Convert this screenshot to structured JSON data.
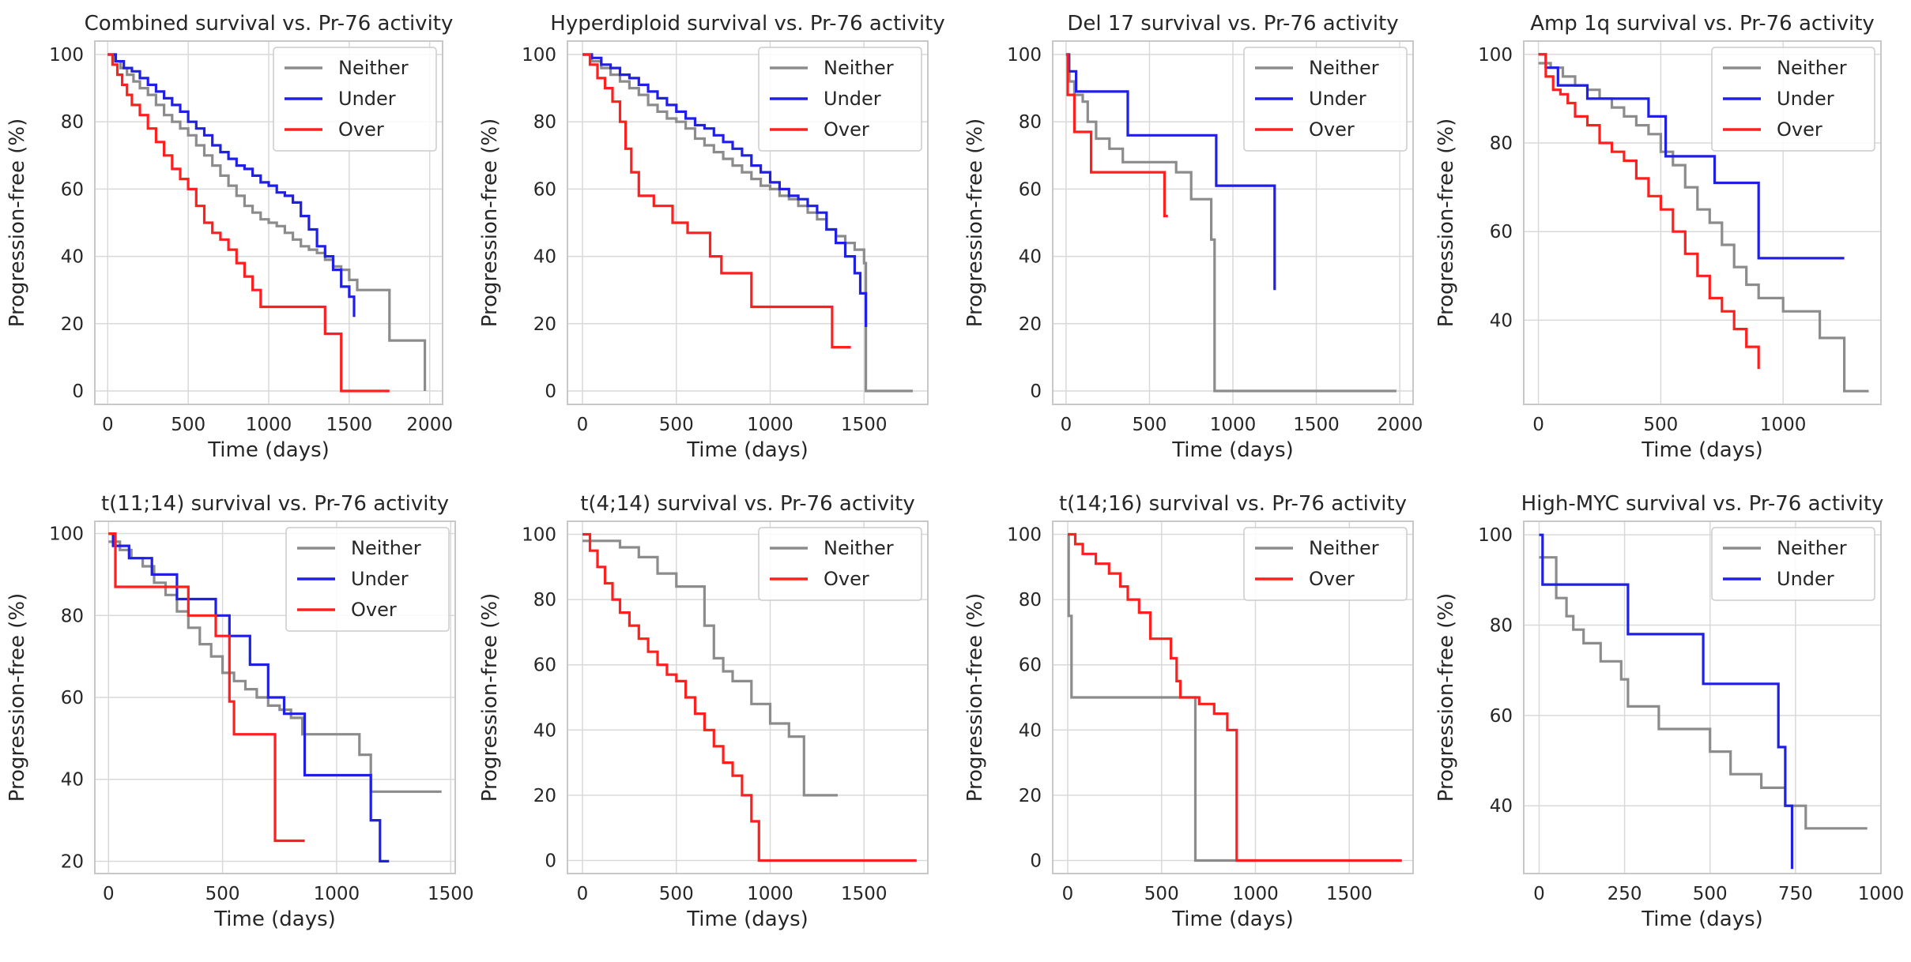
{
  "colors": {
    "Neither": "#8c8c8c",
    "Under": "#1f1fe6",
    "Over": "#ff1f1f"
  },
  "chart_data": [
    {
      "type": "line",
      "title": "Combined survival vs. Pr-76 activity",
      "xlabel": "Time (days)",
      "ylabel": "Progression-free (%)",
      "xlim": [
        -80,
        2080
      ],
      "ylim": [
        -4,
        104
      ],
      "xticks": [
        0,
        500,
        1000,
        1500,
        2000
      ],
      "yticks": [
        0,
        20,
        40,
        60,
        80,
        100
      ],
      "legend": [
        "Neither",
        "Under",
        "Over"
      ],
      "series": [
        {
          "name": "Neither",
          "x": [
            0,
            40,
            80,
            120,
            160,
            200,
            250,
            300,
            350,
            400,
            450,
            500,
            550,
            600,
            650,
            700,
            750,
            800,
            850,
            900,
            950,
            1000,
            1050,
            1100,
            1150,
            1200,
            1250,
            1300,
            1350,
            1400,
            1450,
            1500,
            1550,
            1750,
            1970
          ],
          "y": [
            100,
            98,
            96,
            94,
            92,
            90,
            88,
            85,
            82,
            80,
            78,
            76,
            73,
            70,
            67,
            64,
            61,
            58,
            55,
            53,
            51,
            50,
            49,
            47,
            45,
            43,
            42,
            41,
            39,
            37,
            36,
            33,
            30,
            15,
            0
          ]
        },
        {
          "name": "Under",
          "x": [
            0,
            50,
            100,
            150,
            200,
            250,
            300,
            350,
            400,
            450,
            500,
            550,
            600,
            650,
            700,
            750,
            800,
            850,
            900,
            950,
            1000,
            1050,
            1100,
            1150,
            1200,
            1250,
            1300,
            1350,
            1400,
            1450,
            1500,
            1530
          ],
          "y": [
            100,
            98,
            96,
            95,
            93,
            91,
            89,
            87,
            85,
            83,
            80,
            78,
            76,
            73,
            71,
            69,
            67,
            66,
            64,
            62,
            61,
            59,
            58,
            56,
            52,
            48,
            43,
            40,
            36,
            31,
            28,
            22
          ]
        },
        {
          "name": "Over",
          "x": [
            0,
            30,
            60,
            90,
            120,
            150,
            200,
            250,
            300,
            350,
            400,
            450,
            500,
            550,
            600,
            650,
            700,
            750,
            800,
            850,
            900,
            950,
            1000,
            1050,
            1100,
            1150,
            1200,
            1250,
            1300,
            1350,
            1400,
            1450,
            1750
          ],
          "y": [
            100,
            97,
            94,
            91,
            88,
            85,
            82,
            78,
            74,
            70,
            66,
            63,
            60,
            55,
            50,
            47,
            45,
            42,
            38,
            34,
            30,
            25,
            25,
            25,
            25,
            25,
            25,
            25,
            25,
            17,
            17,
            0,
            0
          ]
        }
      ]
    },
    {
      "type": "line",
      "title": "Hyperdiploid survival vs. Pr-76 activity",
      "xlabel": "Time (days)",
      "ylabel": "Progression-free (%)",
      "xlim": [
        -80,
        1840
      ],
      "ylim": [
        -4,
        104
      ],
      "xticks": [
        0,
        500,
        1000,
        1500
      ],
      "yticks": [
        0,
        20,
        40,
        60,
        80,
        100
      ],
      "legend": [
        "Neither",
        "Under",
        "Over"
      ],
      "series": [
        {
          "name": "Neither",
          "x": [
            0,
            50,
            100,
            150,
            200,
            250,
            300,
            350,
            400,
            450,
            500,
            550,
            600,
            650,
            700,
            750,
            800,
            850,
            900,
            950,
            1000,
            1050,
            1100,
            1150,
            1200,
            1250,
            1300,
            1350,
            1400,
            1450,
            1500,
            1510,
            1760
          ],
          "y": [
            100,
            98,
            96,
            94,
            92,
            90,
            88,
            85,
            83,
            81,
            80,
            78,
            75,
            73,
            71,
            69,
            67,
            65,
            63,
            61,
            60,
            58,
            57,
            55,
            53,
            51,
            48,
            46,
            44,
            42,
            38,
            0,
            0
          ]
        },
        {
          "name": "Under",
          "x": [
            0,
            50,
            100,
            150,
            200,
            250,
            300,
            350,
            400,
            450,
            500,
            550,
            600,
            650,
            700,
            750,
            800,
            850,
            900,
            950,
            1000,
            1050,
            1100,
            1150,
            1200,
            1250,
            1300,
            1350,
            1400,
            1450,
            1480,
            1510
          ],
          "y": [
            100,
            99,
            97,
            96,
            94,
            93,
            91,
            89,
            87,
            85,
            83,
            81,
            79,
            78,
            76,
            74,
            72,
            70,
            67,
            65,
            62,
            60,
            58,
            57,
            55,
            53,
            48,
            44,
            40,
            35,
            29,
            19
          ]
        },
        {
          "name": "Over",
          "x": [
            0,
            40,
            80,
            120,
            160,
            200,
            230,
            260,
            300,
            380,
            480,
            560,
            680,
            740,
            900,
            1100,
            1330,
            1430
          ],
          "y": [
            100,
            97,
            93,
            90,
            86,
            80,
            72,
            65,
            58,
            55,
            50,
            47,
            40,
            35,
            25,
            25,
            13,
            13
          ]
        }
      ]
    },
    {
      "type": "line",
      "title": "Del 17 survival vs. Pr-76 activity",
      "xlabel": "Time (days)",
      "ylabel": "Progression-free (%)",
      "xlim": [
        -80,
        2080
      ],
      "ylim": [
        -4,
        104
      ],
      "xticks": [
        0,
        500,
        1000,
        1500,
        2000
      ],
      "yticks": [
        0,
        20,
        40,
        60,
        80,
        100
      ],
      "legend": [
        "Neither",
        "Under",
        "Over"
      ],
      "series": [
        {
          "name": "Neither",
          "x": [
            0,
            20,
            50,
            100,
            130,
            180,
            260,
            340,
            500,
            660,
            750,
            870,
            890,
            1980
          ],
          "y": [
            100,
            92,
            88,
            86,
            80,
            75,
            72,
            68,
            68,
            65,
            57,
            45,
            0,
            0
          ]
        },
        {
          "name": "Under",
          "x": [
            0,
            15,
            60,
            200,
            370,
            660,
            900,
            1250
          ],
          "y": [
            100,
            95,
            89,
            89,
            76,
            76,
            61,
            30
          ]
        },
        {
          "name": "Over",
          "x": [
            0,
            10,
            50,
            150,
            300,
            450,
            590,
            610
          ],
          "y": [
            100,
            88,
            77,
            65,
            65,
            65,
            52,
            52
          ]
        }
      ]
    },
    {
      "type": "line",
      "title": "Amp 1q survival vs. Pr-76 activity",
      "xlabel": "Time (days)",
      "ylabel": "Progression-free (%)",
      "xlim": [
        -60,
        1400
      ],
      "ylim": [
        21,
        103
      ],
      "xticks": [
        0,
        500,
        1000
      ],
      "yticks": [
        40,
        60,
        80,
        100
      ],
      "legend": [
        "Neither",
        "Under",
        "Over"
      ],
      "series": [
        {
          "name": "Neither",
          "x": [
            0,
            50,
            100,
            150,
            200,
            250,
            300,
            350,
            400,
            450,
            500,
            550,
            600,
            650,
            700,
            750,
            800,
            850,
            900,
            1000,
            1150,
            1250,
            1350
          ],
          "y": [
            98,
            97,
            95,
            93,
            92,
            90,
            88,
            86,
            84,
            82,
            78,
            75,
            70,
            65,
            62,
            57,
            52,
            48,
            45,
            42,
            36,
            24,
            24
          ]
        },
        {
          "name": "Under",
          "x": [
            0,
            30,
            80,
            200,
            320,
            450,
            520,
            720,
            900,
            1250
          ],
          "y": [
            100,
            97,
            93,
            90,
            90,
            86,
            77,
            71,
            54,
            54
          ]
        },
        {
          "name": "Over",
          "x": [
            0,
            30,
            60,
            90,
            120,
            150,
            200,
            250,
            300,
            350,
            400,
            450,
            500,
            550,
            600,
            650,
            700,
            750,
            800,
            850,
            900
          ],
          "y": [
            100,
            95,
            92,
            91,
            89,
            86,
            84,
            80,
            78,
            76,
            72,
            68,
            65,
            60,
            55,
            50,
            45,
            42,
            38,
            34,
            29
          ]
        }
      ]
    },
    {
      "type": "line",
      "title": "t(11;14) survival vs. Pr-76 activity",
      "xlabel": "Time (days)",
      "ylabel": "Progression-free (%)",
      "xlim": [
        -60,
        1520
      ],
      "ylim": [
        17,
        103
      ],
      "xticks": [
        0,
        500,
        1000,
        1500
      ],
      "yticks": [
        20,
        40,
        60,
        80,
        100
      ],
      "legend": [
        "Neither",
        "Under",
        "Over"
      ],
      "series": [
        {
          "name": "Neither",
          "x": [
            0,
            50,
            100,
            150,
            200,
            250,
            300,
            350,
            400,
            450,
            500,
            550,
            600,
            650,
            700,
            750,
            800,
            850,
            900,
            1000,
            1100,
            1150,
            1460
          ],
          "y": [
            98,
            96,
            94,
            92,
            88,
            85,
            81,
            77,
            73,
            70,
            66,
            64,
            62,
            60,
            58,
            57,
            55,
            51,
            51,
            51,
            46,
            37,
            37
          ]
        },
        {
          "name": "Under",
          "x": [
            0,
            20,
            90,
            190,
            300,
            400,
            470,
            530,
            620,
            700,
            770,
            860,
            1150,
            1190,
            1230
          ],
          "y": [
            100,
            97,
            94,
            90,
            84,
            84,
            80,
            75,
            68,
            60,
            56,
            41,
            30,
            20,
            20
          ]
        },
        {
          "name": "Over",
          "x": [
            0,
            30,
            120,
            250,
            350,
            470,
            530,
            550,
            730,
            860
          ],
          "y": [
            100,
            87,
            87,
            87,
            80,
            75,
            59,
            51,
            25,
            25
          ]
        }
      ]
    },
    {
      "type": "line",
      "title": "t(4;14) survival vs. Pr-76 activity",
      "xlabel": "Time (days)",
      "ylabel": "Progression-free (%)",
      "xlim": [
        -80,
        1840
      ],
      "ylim": [
        -4,
        104
      ],
      "xticks": [
        0,
        500,
        1000,
        1500
      ],
      "yticks": [
        0,
        20,
        40,
        60,
        80,
        100
      ],
      "legend": [
        "Neither",
        "Over"
      ],
      "series": [
        {
          "name": "Neither",
          "x": [
            0,
            100,
            200,
            300,
            400,
            500,
            600,
            650,
            700,
            750,
            800,
            900,
            1000,
            1100,
            1180,
            1360
          ],
          "y": [
            98,
            98,
            96,
            93,
            88,
            84,
            84,
            72,
            62,
            58,
            55,
            48,
            42,
            38,
            20,
            20
          ]
        },
        {
          "name": "Over",
          "x": [
            0,
            40,
            80,
            120,
            160,
            200,
            250,
            300,
            350,
            400,
            450,
            500,
            550,
            600,
            650,
            700,
            750,
            800,
            850,
            900,
            940,
            1780
          ],
          "y": [
            100,
            95,
            90,
            85,
            80,
            76,
            72,
            68,
            64,
            60,
            57,
            55,
            50,
            45,
            40,
            35,
            30,
            26,
            20,
            12,
            0,
            0
          ]
        }
      ]
    },
    {
      "type": "line",
      "title": "t(14;16) survival vs. Pr-76 activity",
      "xlabel": "Time (days)",
      "ylabel": "Progression-free (%)",
      "xlim": [
        -80,
        1840
      ],
      "ylim": [
        -4,
        104
      ],
      "xticks": [
        0,
        500,
        1000,
        1500
      ],
      "yticks": [
        0,
        20,
        40,
        60,
        80,
        100
      ],
      "legend": [
        "Neither",
        "Over"
      ],
      "series": [
        {
          "name": "Neither",
          "x": [
            0,
            5,
            20,
            660,
            680,
            1000
          ],
          "y": [
            100,
            75,
            50,
            50,
            0,
            0
          ]
        },
        {
          "name": "Over",
          "x": [
            0,
            40,
            80,
            150,
            220,
            280,
            320,
            380,
            440,
            520,
            550,
            580,
            600,
            700,
            780,
            850,
            900,
            1780
          ],
          "y": [
            100,
            97,
            94,
            91,
            88,
            84,
            80,
            76,
            68,
            68,
            62,
            55,
            50,
            48,
            45,
            40,
            0,
            0
          ]
        }
      ]
    },
    {
      "type": "line",
      "title": "High-MYC survival vs. Pr-76 activity",
      "xlabel": "Time (days)",
      "ylabel": "Progression-free (%)",
      "xlim": [
        -45,
        1000
      ],
      "ylim": [
        25,
        103
      ],
      "xticks": [
        0,
        250,
        500,
        750,
        1000
      ],
      "yticks": [
        40,
        60,
        80,
        100
      ],
      "legend": [
        "Neither",
        "Under"
      ],
      "series": [
        {
          "name": "Neither",
          "x": [
            0,
            50,
            80,
            100,
            130,
            180,
            240,
            260,
            350,
            450,
            500,
            560,
            650,
            720,
            780,
            960
          ],
          "y": [
            95,
            86,
            82,
            79,
            76,
            72,
            68,
            62,
            57,
            57,
            52,
            47,
            44,
            40,
            35,
            35
          ]
        },
        {
          "name": "Under",
          "x": [
            0,
            10,
            250,
            260,
            470,
            480,
            700,
            720,
            740
          ],
          "y": [
            100,
            89,
            89,
            78,
            78,
            67,
            53,
            40,
            26
          ]
        }
      ]
    }
  ]
}
